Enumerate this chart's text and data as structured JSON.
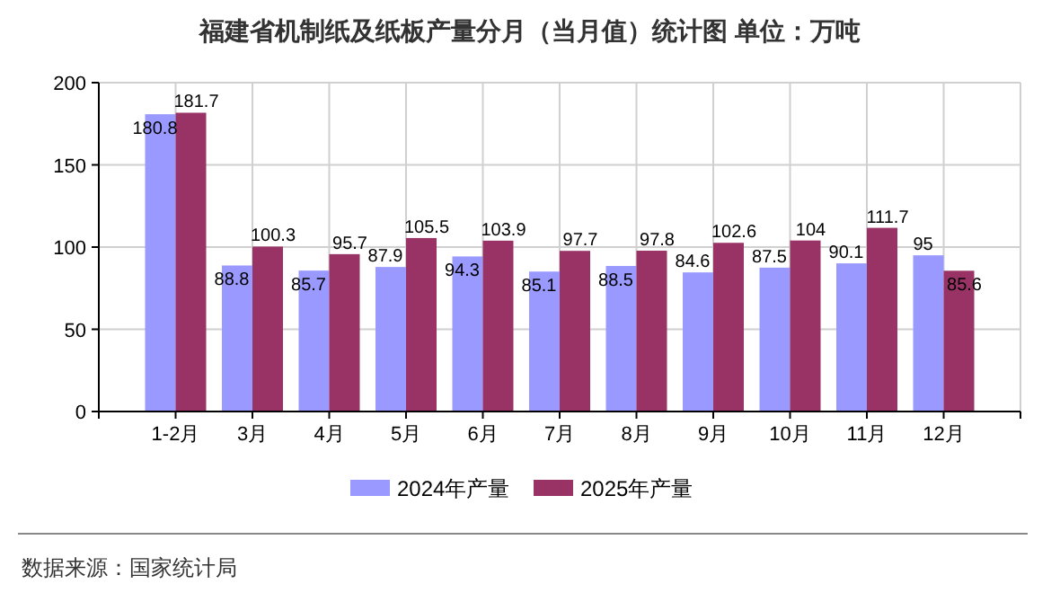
{
  "chart_data": {
    "type": "bar",
    "title": "福建省机制纸及纸板产量分月（当月值）统计图 单位：万吨",
    "categories": [
      "1-2月",
      "3月",
      "4月",
      "5月",
      "6月",
      "7月",
      "8月",
      "9月",
      "10月",
      "11月",
      "12月"
    ],
    "series": [
      {
        "name": "2024年产量",
        "color": "#9999ff",
        "values": [
          180.8,
          88.8,
          85.7,
          87.9,
          94.3,
          85.1,
          88.5,
          84.6,
          87.5,
          90.1,
          95
        ]
      },
      {
        "name": "2025年产量",
        "color": "#993366",
        "values": [
          181.7,
          100.3,
          95.7,
          105.5,
          103.9,
          97.7,
          97.8,
          102.6,
          104,
          111.7,
          85.6
        ]
      }
    ],
    "ylim": [
      0,
      200
    ],
    "yticks": [
      0,
      50,
      100,
      150,
      200
    ],
    "grid": true,
    "legend": "bottom",
    "data_labels": true,
    "annotations": [
      "数据来源：国家统计局"
    ]
  }
}
